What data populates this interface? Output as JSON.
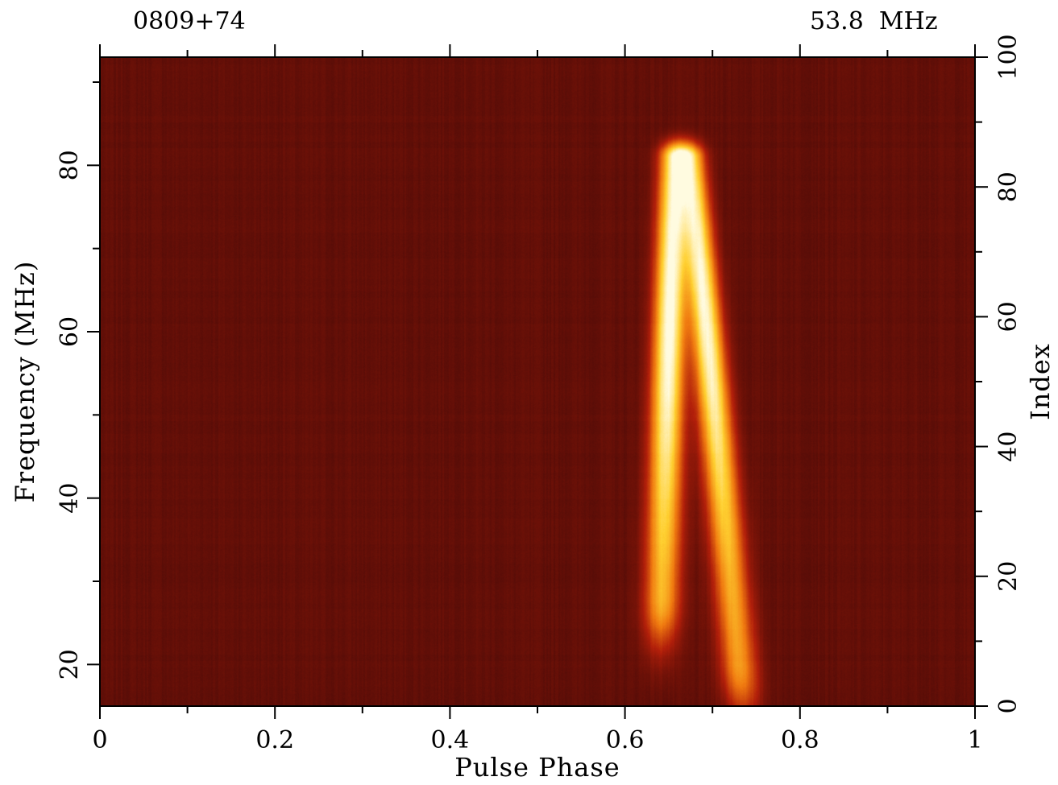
{
  "header": {
    "left_label": "0809+74",
    "right_label": "53.8  MHz"
  },
  "chart_data": {
    "type": "heatmap",
    "xlabel": "Pulse Phase",
    "ylabel_left": "Frequency (MHz)",
    "ylabel_right": "Index",
    "xlim": [
      0,
      1
    ],
    "ylim_left": [
      15,
      93
    ],
    "ylim_right": [
      0,
      100
    ],
    "x_ticks": [
      {
        "value": 0,
        "label": "0"
      },
      {
        "value": 0.2,
        "label": "0.2"
      },
      {
        "value": 0.4,
        "label": "0.4"
      },
      {
        "value": 0.6,
        "label": "0.6"
      },
      {
        "value": 0.8,
        "label": "0.8"
      },
      {
        "value": 1,
        "label": "1"
      }
    ],
    "y_left_ticks": [
      {
        "value": 20,
        "label": "20"
      },
      {
        "value": 40,
        "label": "40"
      },
      {
        "value": 60,
        "label": "60"
      },
      {
        "value": 80,
        "label": "80"
      }
    ],
    "y_right_ticks": [
      {
        "value": 0,
        "label": "0"
      },
      {
        "value": 20,
        "label": "20"
      },
      {
        "value": 40,
        "label": "40"
      },
      {
        "value": 60,
        "label": "60"
      },
      {
        "value": 80,
        "label": "80"
      },
      {
        "value": 100,
        "label": "100"
      }
    ],
    "colormap": [
      "#4a0a06",
      "#b21f0a",
      "#f07a10",
      "#ffd030",
      "#fffbe0"
    ],
    "pulse": {
      "components": [
        {
          "name": "leading",
          "phase_at_80MHz": 0.655,
          "phase_at_20MHz": 0.64,
          "fade_below_MHz": 28,
          "peak_intensity": 1.0
        },
        {
          "name": "trailing",
          "phase_at_80MHz": 0.675,
          "phase_at_20MHz": 0.73,
          "fade_below_MHz": 20,
          "peak_intensity": 0.95
        }
      ],
      "top_cutoff_MHz": 81
    }
  }
}
